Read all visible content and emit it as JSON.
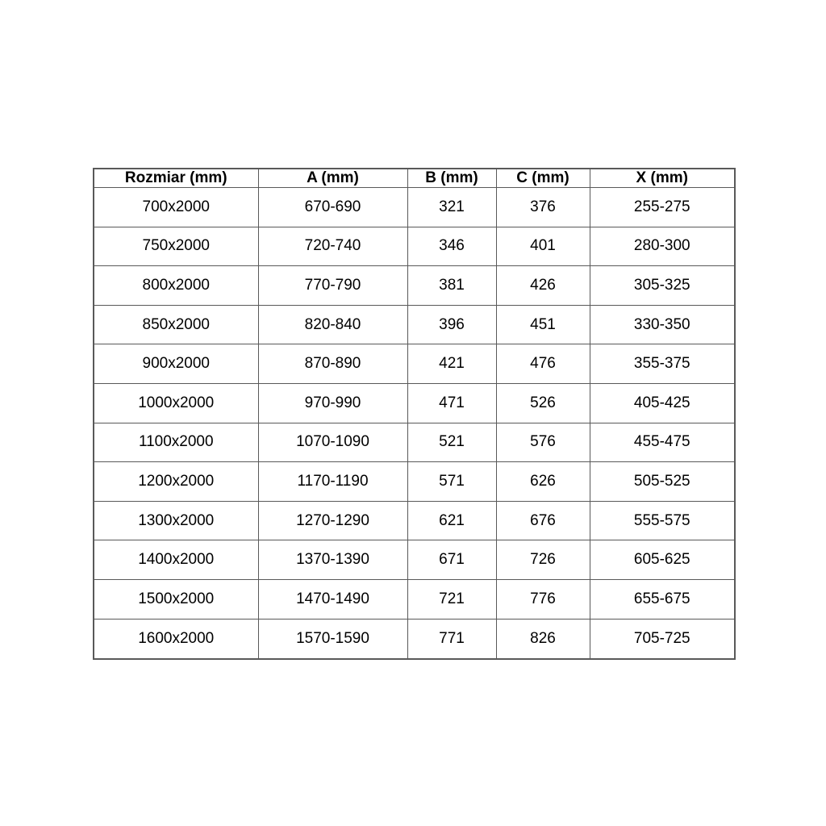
{
  "colors": {
    "background": "#ffffff",
    "border": "#595959",
    "text": "#000000"
  },
  "table": {
    "name": "shower-door-dimensions-table",
    "headers": [
      "Rozmiar (mm)",
      "A (mm)",
      "B (mm)",
      "C (mm)",
      "X (mm)"
    ],
    "rows": [
      [
        "700x2000",
        "670-690",
        "321",
        "376",
        "255-275"
      ],
      [
        "750x2000",
        "720-740",
        "346",
        "401",
        "280-300"
      ],
      [
        "800x2000",
        "770-790",
        "381",
        "426",
        "305-325"
      ],
      [
        "850x2000",
        "820-840",
        "396",
        "451",
        "330-350"
      ],
      [
        "900x2000",
        "870-890",
        "421",
        "476",
        "355-375"
      ],
      [
        "1000x2000",
        "970-990",
        "471",
        "526",
        "405-425"
      ],
      [
        "1100x2000",
        "1070-1090",
        "521",
        "576",
        "455-475"
      ],
      [
        "1200x2000",
        "1170-1190",
        "571",
        "626",
        "505-525"
      ],
      [
        "1300x2000",
        "1270-1290",
        "621",
        "676",
        "555-575"
      ],
      [
        "1400x2000",
        "1370-1390",
        "671",
        "726",
        "605-625"
      ],
      [
        "1500x2000",
        "1470-1490",
        "721",
        "776",
        "655-675"
      ],
      [
        "1600x2000",
        "1570-1590",
        "771",
        "826",
        "705-725"
      ]
    ]
  }
}
